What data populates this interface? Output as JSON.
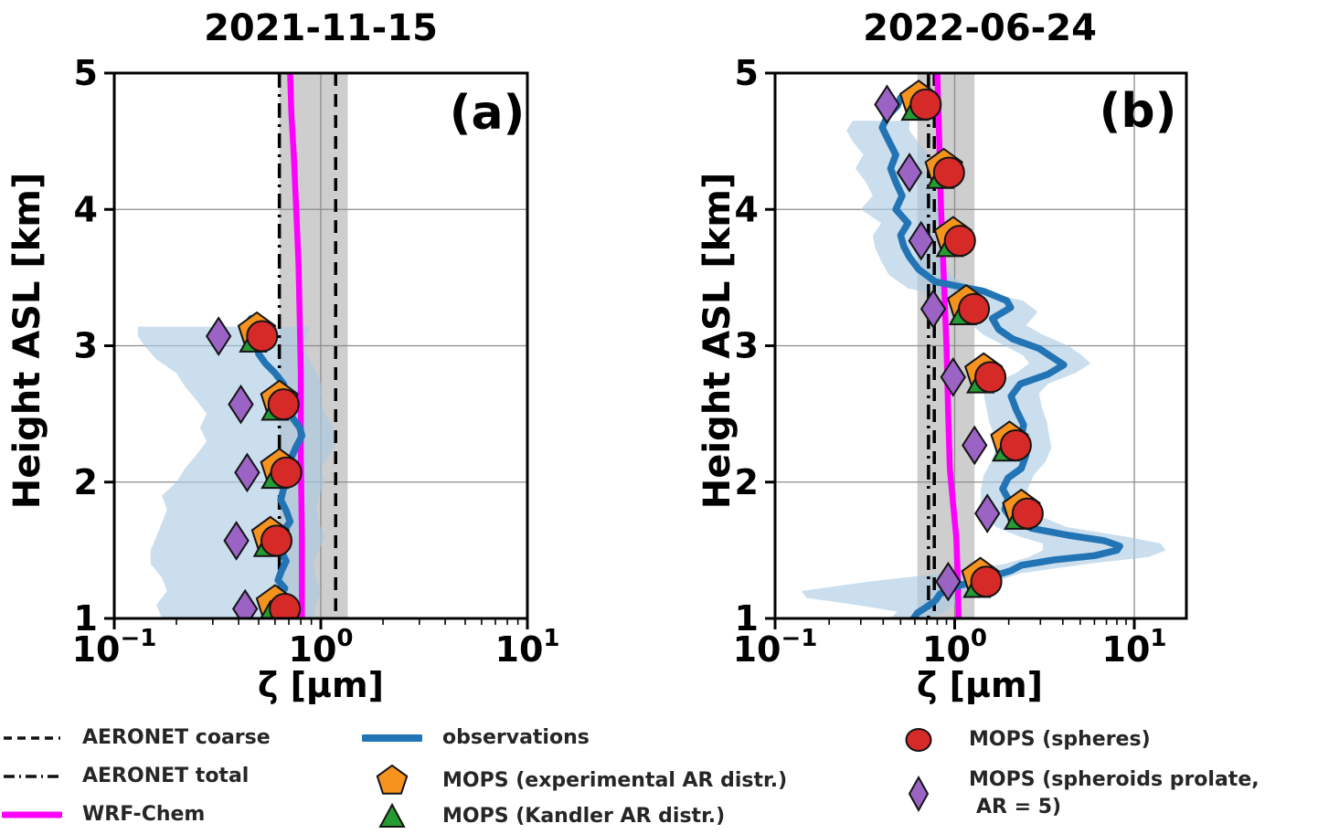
{
  "figure": {
    "background": "#ffffff",
    "text_color": "#262626"
  },
  "colors": {
    "observations_line": "#2374b5",
    "observations_band": "#aac9e4",
    "wrf_chem": "#ff00ff",
    "aeronet_lines": "#000000",
    "aeronet_band": "#9e9e9e",
    "mops_experimental": "#f6921e",
    "mops_kandler": "#269a33",
    "mops_spheres": "#d62a28",
    "mops_spheroids": "#9b63c4",
    "grid": "#8c8c8c",
    "axis": "#000000"
  },
  "chart_data": [
    {
      "type": "line",
      "panel_label": "(a)",
      "title": "2021-11-15",
      "xlabel": "ζ [μm]",
      "ylabel": "Height ASL [km]",
      "xlim": [
        0.1,
        10
      ],
      "ylim": [
        1,
        5
      ],
      "x_scale": "log",
      "xtick_exponents": [
        -1,
        0,
        1
      ],
      "yticks": [
        1,
        2,
        3,
        4,
        5
      ],
      "grid": true,
      "aeronet_coarse_x": 1.18,
      "aeronet_total_x": 0.63,
      "aeronet_band": [
        0.63,
        1.35
      ],
      "wrf_chem": [
        [
          0.81,
          1.0
        ],
        [
          0.81,
          1.6
        ],
        [
          0.8,
          2.2
        ],
        [
          0.8,
          2.8
        ],
        [
          0.79,
          3.2
        ],
        [
          0.78,
          3.6
        ],
        [
          0.76,
          4.0
        ],
        [
          0.74,
          4.4
        ],
        [
          0.72,
          4.7
        ],
        [
          0.71,
          5.0
        ]
      ],
      "observations_line": [
        [
          0.57,
          1.0
        ],
        [
          0.61,
          1.05
        ],
        [
          0.64,
          1.1
        ],
        [
          0.6,
          1.16
        ],
        [
          0.67,
          1.22
        ],
        [
          0.62,
          1.28
        ],
        [
          0.645,
          1.35
        ],
        [
          0.68,
          1.42
        ],
        [
          0.64,
          1.5
        ],
        [
          0.695,
          1.57
        ],
        [
          0.66,
          1.64
        ],
        [
          0.71,
          1.71
        ],
        [
          0.68,
          1.79
        ],
        [
          0.64,
          1.87
        ],
        [
          0.66,
          1.95
        ],
        [
          0.7,
          2.02
        ],
        [
          0.67,
          2.1
        ],
        [
          0.72,
          2.18
        ],
        [
          0.76,
          2.26
        ],
        [
          0.81,
          2.34
        ],
        [
          0.79,
          2.4
        ],
        [
          0.73,
          2.47
        ],
        [
          0.7,
          2.55
        ],
        [
          0.69,
          2.63
        ],
        [
          0.66,
          2.72
        ],
        [
          0.6,
          2.8
        ],
        [
          0.54,
          2.87
        ],
        [
          0.5,
          2.94
        ],
        [
          0.49,
          3.01
        ],
        [
          0.44,
          3.07
        ],
        [
          0.43,
          3.14
        ],
        [
          0.46,
          3.2
        ]
      ],
      "observations_band": [
        [
          1.0,
          0.17,
          0.92
        ],
        [
          1.1,
          0.16,
          0.95
        ],
        [
          1.2,
          0.18,
          1.0
        ],
        [
          1.3,
          0.17,
          0.95
        ],
        [
          1.4,
          0.15,
          0.92
        ],
        [
          1.5,
          0.15,
          0.98
        ],
        [
          1.6,
          0.16,
          1.05
        ],
        [
          1.7,
          0.17,
          0.98
        ],
        [
          1.8,
          0.18,
          0.95
        ],
        [
          1.9,
          0.17,
          0.98
        ],
        [
          2.0,
          0.2,
          1.05
        ],
        [
          2.1,
          0.22,
          1.0
        ],
        [
          2.2,
          0.25,
          1.1
        ],
        [
          2.3,
          0.28,
          1.2
        ],
        [
          2.4,
          0.26,
          1.15
        ],
        [
          2.5,
          0.28,
          1.05
        ],
        [
          2.6,
          0.25,
          1.0
        ],
        [
          2.7,
          0.22,
          1.02
        ],
        [
          2.8,
          0.2,
          0.95
        ],
        [
          2.9,
          0.16,
          0.88
        ],
        [
          3.0,
          0.14,
          0.82
        ],
        [
          3.07,
          0.13,
          0.85
        ],
        [
          3.14,
          0.13,
          0.88
        ]
      ],
      "mops_heights": [
        3.07,
        2.57,
        2.07,
        1.57,
        1.07
      ],
      "mops_series": {
        "spheroids_prolate": [
          0.32,
          0.41,
          0.44,
          0.39,
          0.43
        ],
        "experimental": [
          0.49,
          0.63,
          0.63,
          0.57,
          0.6
        ],
        "kandler": [
          0.47,
          0.6,
          0.6,
          0.55,
          0.57
        ],
        "spheres": [
          0.52,
          0.66,
          0.68,
          0.61,
          0.67
        ]
      }
    },
    {
      "type": "line",
      "panel_label": "(b)",
      "title": "2022-06-24",
      "xlabel": "ζ [μm]",
      "ylabel": "Height ASL [km]",
      "xlim": [
        0.1,
        19.5
      ],
      "ylim": [
        1,
        5
      ],
      "x_scale": "log",
      "xtick_exponents": [
        -1,
        0,
        1
      ],
      "yticks": [
        1,
        2,
        3,
        4,
        5
      ],
      "grid": true,
      "aeronet_coarse_x": 0.77,
      "aeronet_total_x": 0.715,
      "aeronet_band": [
        0.62,
        1.29
      ],
      "wrf_chem": [
        [
          1.05,
          1.0
        ],
        [
          1.04,
          1.3
        ],
        [
          1.02,
          1.6
        ],
        [
          0.97,
          1.9
        ],
        [
          0.94,
          2.1
        ],
        [
          0.92,
          2.5
        ],
        [
          0.9,
          3.0
        ],
        [
          0.87,
          3.5
        ],
        [
          0.84,
          4.0
        ],
        [
          0.82,
          4.5
        ],
        [
          0.8,
          5.0
        ]
      ],
      "observations_line": [
        [
          0.59,
          1.0
        ],
        [
          0.62,
          1.04
        ],
        [
          0.69,
          1.08
        ],
        [
          0.78,
          1.13
        ],
        [
          0.83,
          1.18
        ],
        [
          1.05,
          1.24
        ],
        [
          1.55,
          1.3
        ],
        [
          2.05,
          1.35
        ],
        [
          2.35,
          1.39
        ],
        [
          3.6,
          1.43
        ],
        [
          6.0,
          1.46
        ],
        [
          8.0,
          1.5
        ],
        [
          8.3,
          1.53
        ],
        [
          6.8,
          1.57
        ],
        [
          4.3,
          1.61
        ],
        [
          2.7,
          1.66
        ],
        [
          2.1,
          1.72
        ],
        [
          1.9,
          1.8
        ],
        [
          1.98,
          1.88
        ],
        [
          1.85,
          1.95
        ],
        [
          1.98,
          2.03
        ],
        [
          2.35,
          2.1
        ],
        [
          2.5,
          2.2
        ],
        [
          2.33,
          2.31
        ],
        [
          2.42,
          2.42
        ],
        [
          2.2,
          2.53
        ],
        [
          2.06,
          2.63
        ],
        [
          2.32,
          2.72
        ],
        [
          3.3,
          2.79
        ],
        [
          4.05,
          2.86
        ],
        [
          3.45,
          2.92
        ],
        [
          2.95,
          2.98
        ],
        [
          2.1,
          3.05
        ],
        [
          1.76,
          3.12
        ],
        [
          1.62,
          3.2
        ],
        [
          2.05,
          3.28
        ],
        [
          1.95,
          3.33
        ],
        [
          1.45,
          3.4
        ],
        [
          0.78,
          3.47
        ],
        [
          0.63,
          3.56
        ],
        [
          0.56,
          3.65
        ],
        [
          0.52,
          3.73
        ],
        [
          0.5,
          3.81
        ],
        [
          0.55,
          3.9
        ],
        [
          0.47,
          4.0
        ],
        [
          0.51,
          4.1
        ],
        [
          0.47,
          4.2
        ],
        [
          0.44,
          4.3
        ],
        [
          0.47,
          4.4
        ],
        [
          0.43,
          4.5
        ],
        [
          0.395,
          4.6
        ],
        [
          0.42,
          4.68
        ],
        [
          0.48,
          4.76
        ],
        [
          0.5,
          4.82
        ]
      ],
      "observations_band": [
        [
          1.0,
          0.44,
          0.75
        ],
        [
          1.05,
          0.48,
          0.88
        ],
        [
          1.1,
          0.28,
          1.0
        ],
        [
          1.15,
          0.15,
          1.15
        ],
        [
          1.2,
          0.14,
          1.35
        ],
        [
          1.27,
          0.33,
          1.7
        ],
        [
          1.33,
          0.85,
          2.3
        ],
        [
          1.4,
          1.9,
          5.5
        ],
        [
          1.45,
          2.6,
          12.0
        ],
        [
          1.5,
          3.1,
          15.0
        ],
        [
          1.55,
          3.1,
          14.0
        ],
        [
          1.6,
          2.3,
          9.0
        ],
        [
          1.67,
          1.7,
          4.2
        ],
        [
          1.75,
          1.45,
          3.0
        ],
        [
          1.85,
          1.4,
          2.6
        ],
        [
          1.95,
          1.4,
          2.55
        ],
        [
          2.05,
          1.45,
          2.75
        ],
        [
          2.15,
          1.6,
          3.2
        ],
        [
          2.25,
          1.7,
          3.45
        ],
        [
          2.35,
          1.65,
          3.35
        ],
        [
          2.45,
          1.55,
          3.25
        ],
        [
          2.55,
          1.5,
          3.05
        ],
        [
          2.65,
          1.45,
          2.95
        ],
        [
          2.72,
          1.6,
          3.3
        ],
        [
          2.8,
          2.2,
          4.7
        ],
        [
          2.87,
          2.6,
          5.7
        ],
        [
          2.93,
          2.4,
          5.1
        ],
        [
          3.0,
          1.9,
          4.3
        ],
        [
          3.08,
          1.45,
          3.1
        ],
        [
          3.15,
          1.25,
          2.5
        ],
        [
          3.25,
          1.35,
          2.9
        ],
        [
          3.33,
          1.15,
          2.4
        ],
        [
          3.42,
          0.55,
          1.25
        ],
        [
          3.52,
          0.43,
          0.95
        ],
        [
          3.62,
          0.39,
          0.86
        ],
        [
          3.72,
          0.36,
          0.8
        ],
        [
          3.81,
          0.35,
          0.78
        ],
        [
          3.9,
          0.39,
          0.86
        ],
        [
          4.0,
          0.3,
          0.8
        ],
        [
          4.1,
          0.35,
          0.8
        ],
        [
          4.2,
          0.32,
          0.72
        ],
        [
          4.3,
          0.28,
          0.67
        ],
        [
          4.4,
          0.31,
          0.71
        ],
        [
          4.5,
          0.27,
          0.62
        ],
        [
          4.58,
          0.25,
          0.56
        ],
        [
          4.65,
          0.27,
          0.56
        ]
      ],
      "mops_heights": [
        4.77,
        4.27,
        3.77,
        3.27,
        2.77,
        2.27,
        1.77,
        1.27
      ],
      "mops_series": {
        "spheroids_prolate": [
          0.42,
          0.56,
          0.65,
          0.76,
          0.98,
          1.29,
          1.52,
          0.92
        ],
        "experimental": [
          0.63,
          0.87,
          0.98,
          1.16,
          1.45,
          2.02,
          2.35,
          1.39
        ],
        "kandler": [
          0.6,
          0.83,
          0.94,
          1.11,
          1.39,
          1.93,
          2.25,
          1.33
        ],
        "spheres": [
          0.69,
          0.93,
          1.07,
          1.28,
          1.58,
          2.19,
          2.55,
          1.5
        ]
      }
    }
  ],
  "legend": {
    "items": [
      {
        "key": "aeronet_coarse",
        "label": "AERONET coarse",
        "swatch": "dashed-line",
        "color": "#111111"
      },
      {
        "key": "aeronet_total",
        "label": "AERONET total",
        "swatch": "dashdot-line",
        "color": "#111111"
      },
      {
        "key": "wrf_chem",
        "label": "WRF-Chem",
        "swatch": "solid-line",
        "color": "#ff00ff"
      },
      {
        "key": "observations",
        "label": "observations",
        "swatch": "solid-line",
        "color": "#2374b5"
      },
      {
        "key": "mops_experimental",
        "label": "MOPS (experimental AR distr.)",
        "swatch": "pentagon",
        "color": "#f6921e"
      },
      {
        "key": "mops_kandler",
        "label": "MOPS (Kandler AR distr.)",
        "swatch": "triangle",
        "color": "#269a33"
      },
      {
        "key": "mops_spheres",
        "label": "MOPS (spheres)",
        "swatch": "circle",
        "color": "#d62a28"
      },
      {
        "key": "mops_spheroids",
        "label": "MOPS (spheroids prolate,",
        "label2": "AR = 5)",
        "swatch": "diamond",
        "color": "#9b63c4"
      }
    ]
  }
}
